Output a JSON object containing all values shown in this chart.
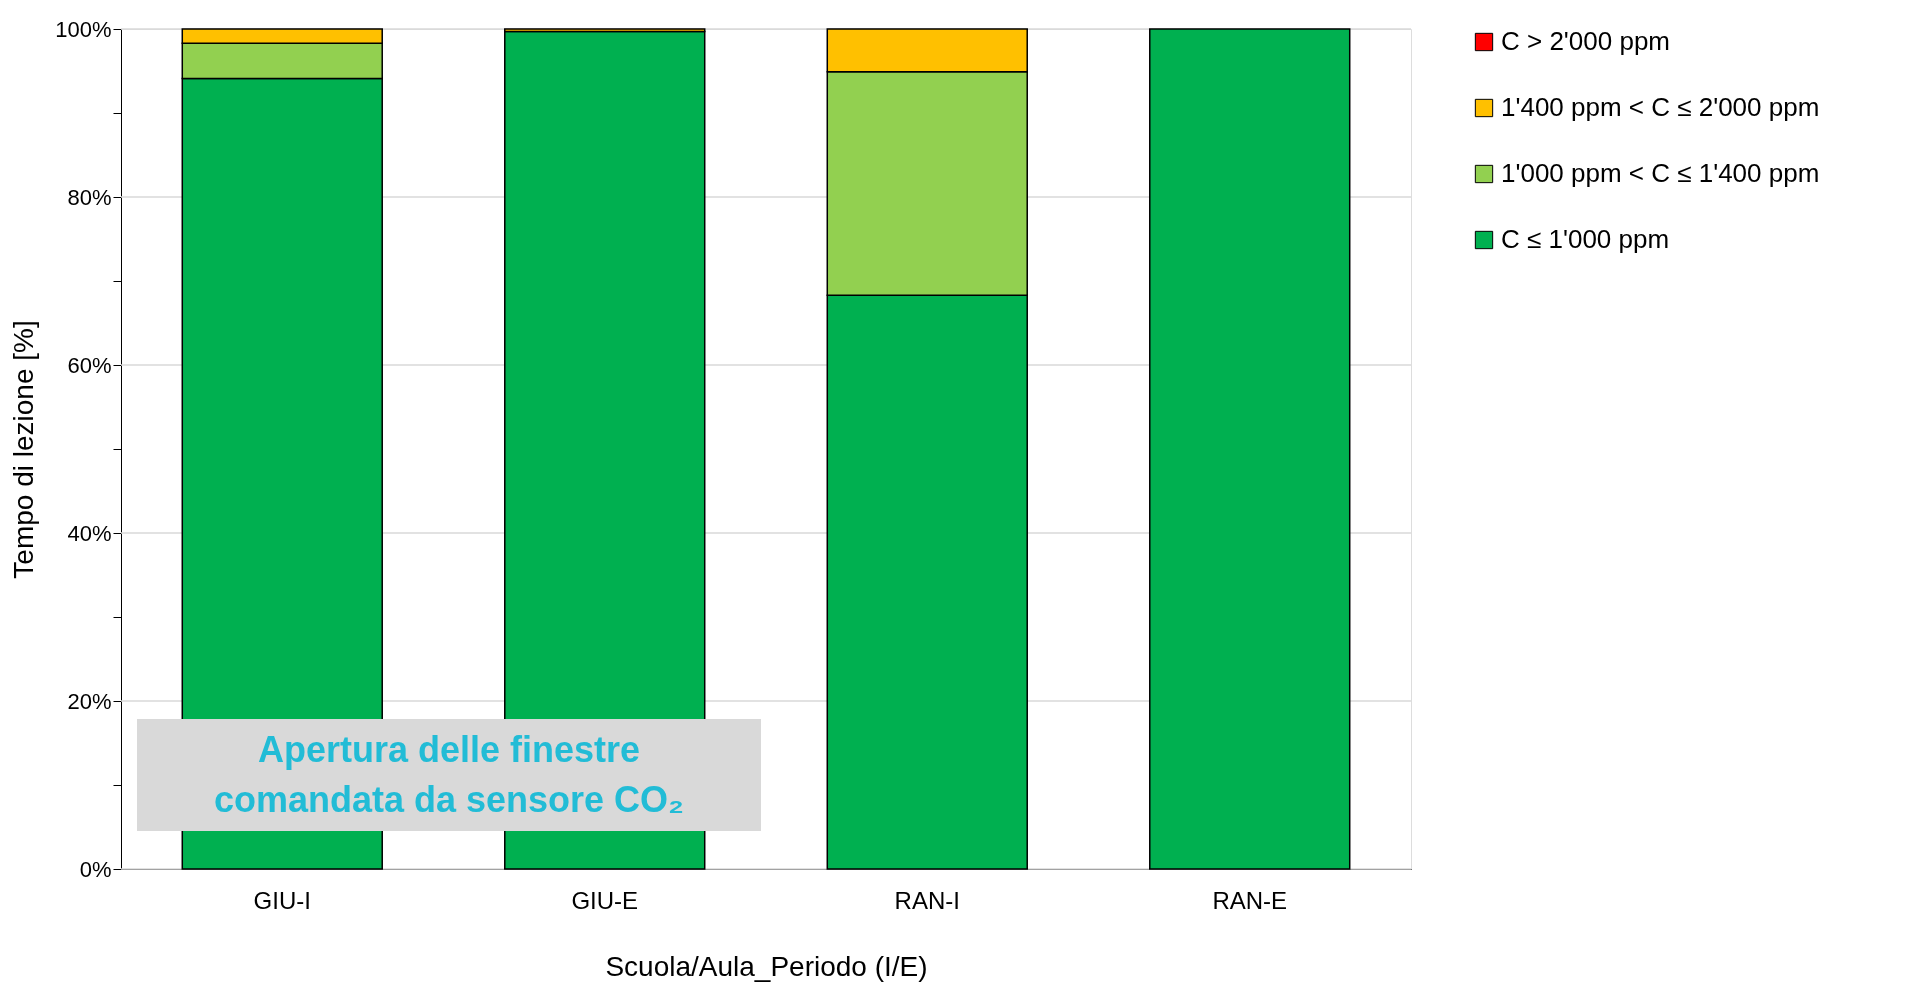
{
  "chart_data": {
    "type": "bar",
    "stacked": true,
    "categories": [
      "GIU-I",
      "GIU-E",
      "RAN-I",
      "RAN-E"
    ],
    "xlabel": "Scuola/Aula_Periodo  (I/E)",
    "ylabel": "Tempo di lezione [%]",
    "series": [
      {
        "name": "C  ≤ 1'000 ppm",
        "color": "#00b050",
        "values": [
          94.1,
          99.7,
          68.3,
          100
        ]
      },
      {
        "name": "1'000 ppm < C ≤ 1'400 ppm",
        "color": "#92d050",
        "values": [
          4.2,
          0,
          26.6,
          0
        ]
      },
      {
        "name": "1'400 ppm < C ≤ 2'000 ppm",
        "color": "#ffc000",
        "values": [
          1.7,
          0.3,
          5.1,
          0
        ]
      },
      {
        "name": "C > 2'000 ppm",
        "color": "#ff0000",
        "values": [
          0,
          0,
          0,
          0
        ]
      }
    ],
    "ylim": [
      0,
      100
    ],
    "yticks": [
      {
        "value": 0,
        "label": "0%"
      },
      {
        "value": 10,
        "label": null
      },
      {
        "value": 20,
        "label": "20%"
      },
      {
        "value": 30,
        "label": null
      },
      {
        "value": 40,
        "label": "40%"
      },
      {
        "value": 50,
        "label": null
      },
      {
        "value": 60,
        "label": "60%"
      },
      {
        "value": 70,
        "label": null
      },
      {
        "value": 80,
        "label": "80%"
      },
      {
        "value": 90,
        "label": null
      },
      {
        "value": 100,
        "label": "100%"
      }
    ],
    "grid": "y",
    "legend": "top right",
    "annotations": [
      "Apertura delle finestre comandata da sensore CO₂"
    ]
  }
}
